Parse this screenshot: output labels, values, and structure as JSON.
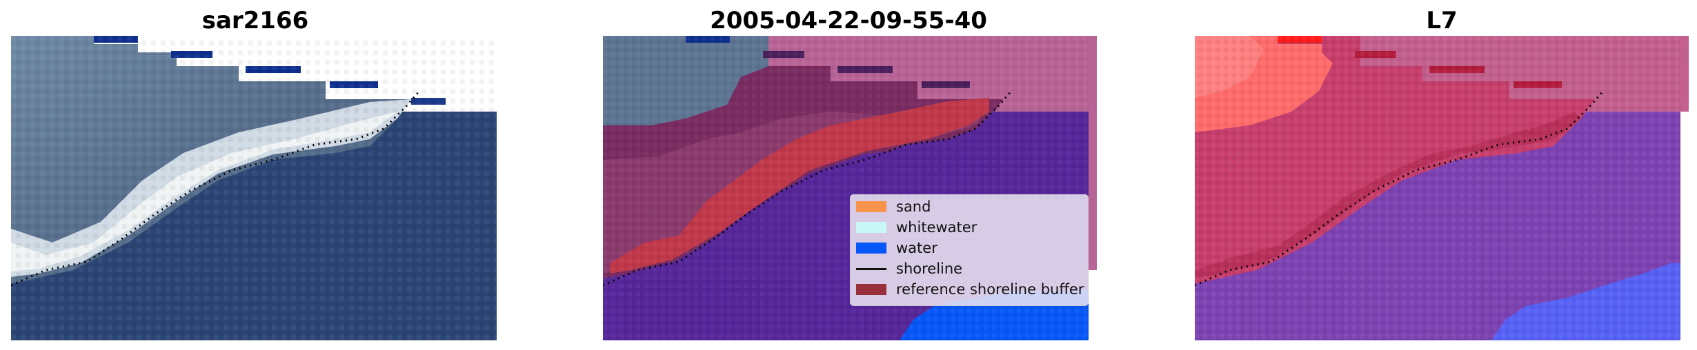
{
  "panels": [
    {
      "title": "sar2166",
      "view": "true-color image"
    },
    {
      "title": "2005-04-22-09-55-40",
      "view": "classification overlay"
    },
    {
      "title": "L7",
      "view": "probability overlay"
    }
  ],
  "legend": {
    "items": [
      {
        "label": "sand",
        "color": "#f9924a",
        "kind": "patch"
      },
      {
        "label": "whitewater",
        "color": "#c9f6f6",
        "kind": "patch"
      },
      {
        "label": "water",
        "color": "#0757f8",
        "kind": "patch"
      },
      {
        "label": "shoreline",
        "color": "#111111",
        "kind": "line"
      },
      {
        "label": "reference shoreline buffer",
        "color": "#9a2f3c",
        "kind": "patch"
      }
    ]
  },
  "colors": {
    "sea_dark": "#28406e",
    "sea_mid": "#2f4d80",
    "land_grey": "#5b7390",
    "whitewater": "#e8eef2",
    "class_water": "#56279a",
    "class_buffer": "#7a2c62",
    "class_sand_band": "#c0384a",
    "class_white_area": "#b96496",
    "prob_land": "#c73e6d",
    "prob_water": "#7d42b2",
    "prob_bright_red": "#ff6b6b",
    "prob_blue": "#5661f5",
    "nodata_blue": "#0f2f8f"
  }
}
